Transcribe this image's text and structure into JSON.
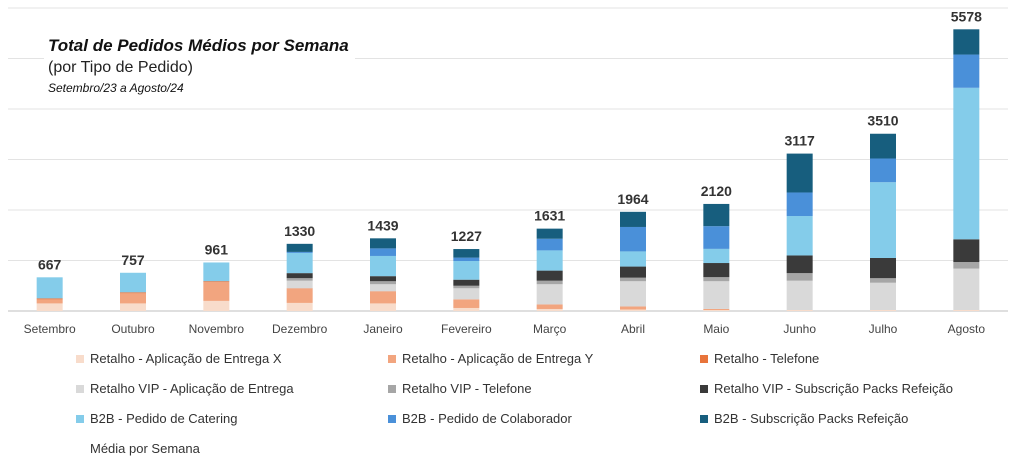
{
  "chart_data": {
    "type": "bar",
    "stacked": true,
    "title": "Total de Pedidos Médios por Semana",
    "subtitle": "(por Tipo de Pedido)",
    "period": "Setembro/23 a Agosto/24",
    "categories": [
      "Setembro",
      "Outubro",
      "Novembro",
      "Dezembro",
      "Janeiro",
      "Fevereiro",
      "Março",
      "Abril",
      "Maio",
      "Junho",
      "Julho",
      "Agosto"
    ],
    "totals": [
      667,
      757,
      961,
      1330,
      1439,
      1227,
      1631,
      1964,
      2120,
      3117,
      3510,
      5578
    ],
    "ylim": [
      0,
      6000
    ],
    "grid": true,
    "legend_position": "bottom",
    "series": [
      {
        "name": "Retalho - Aplicação de Entrega X",
        "color": "#F8DCCB",
        "values": [
          150,
          150,
          200,
          160,
          150,
          60,
          40,
          30,
          20,
          20,
          20,
          20
        ]
      },
      {
        "name": "Retalho - Aplicação de Entrega Y",
        "color": "#F2A57F",
        "values": [
          80,
          200,
          370,
          280,
          230,
          170,
          90,
          60,
          20,
          0,
          0,
          0
        ]
      },
      {
        "name": "Retalho - Telefone",
        "color": "#E8743B",
        "values": [
          20,
          20,
          20,
          10,
          10,
          0,
          0,
          0,
          0,
          0,
          0,
          0
        ]
      },
      {
        "name": "Retalho VIP - Aplicação de Entrega",
        "color": "#D9D9D9",
        "values": [
          0,
          0,
          0,
          150,
          140,
          220,
          400,
          500,
          550,
          580,
          540,
          820
        ]
      },
      {
        "name": "Retalho VIP - Telefone",
        "color": "#A6A6A6",
        "values": [
          0,
          0,
          0,
          50,
          60,
          50,
          70,
          70,
          80,
          150,
          90,
          130
        ]
      },
      {
        "name": "Retalho VIP - Subscrição Packs Refeição",
        "color": "#3A3A3A",
        "values": [
          0,
          0,
          0,
          100,
          100,
          120,
          200,
          220,
          280,
          350,
          400,
          450
        ]
      },
      {
        "name": "B2B - Pedido de Catering",
        "color": "#84CCEA",
        "values": [
          417,
          387,
          371,
          400,
          400,
          370,
          400,
          300,
          280,
          780,
          1500,
          3000
        ]
      },
      {
        "name": "B2B - Pedido de Colaborador",
        "color": "#4A90D9",
        "values": [
          0,
          0,
          0,
          20,
          150,
          67,
          231,
          484,
          450,
          467,
          470,
          658
        ]
      },
      {
        "name": "B2B - Subscrição Packs Refeição",
        "color": "#175E7E",
        "values": [
          0,
          0,
          0,
          160,
          199,
          170,
          200,
          300,
          440,
          770,
          490,
          500
        ]
      }
    ],
    "extra_legend": "Média por Semana"
  }
}
